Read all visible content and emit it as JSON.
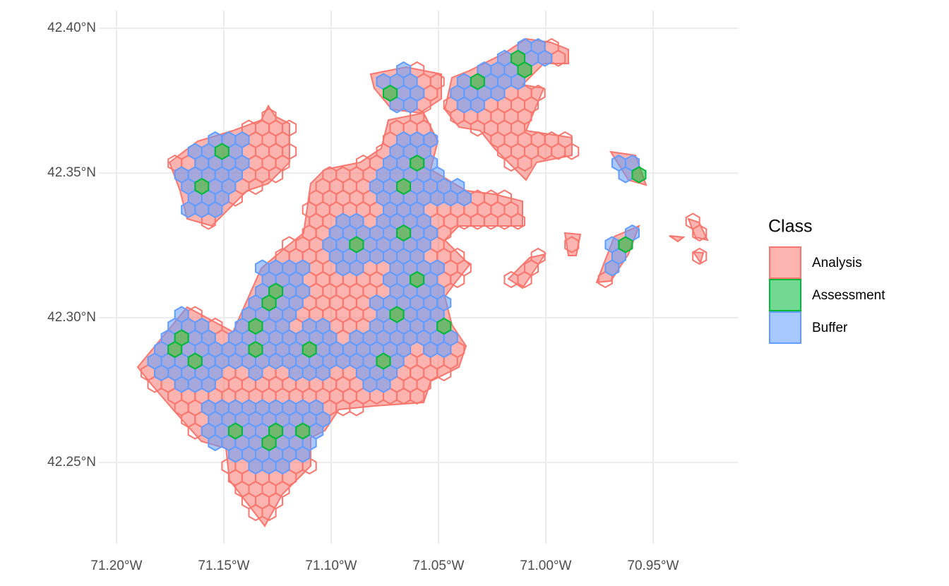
{
  "chart_data": {
    "type": "map",
    "legend_title": "Class",
    "series": [
      {
        "name": "Analysis",
        "color": "#f8766d"
      },
      {
        "name": "Assessment",
        "color": "#00ba38"
      },
      {
        "name": "Buffer",
        "color": "#619cff"
      }
    ],
    "xlim": [
      -71.2082,
      -70.9105
    ],
    "ylim": [
      42.222,
      42.4061
    ],
    "xticks": [
      {
        "value": -71.2,
        "label": "71.20°W"
      },
      {
        "value": -71.15,
        "label": "71.15°W"
      },
      {
        "value": -71.1,
        "label": "71.10°W"
      },
      {
        "value": -71.05,
        "label": "71.05°W"
      },
      {
        "value": -71.0,
        "label": "71.00°W"
      },
      {
        "value": -70.95,
        "label": "70.95°W"
      }
    ],
    "yticks": [
      {
        "value": 42.25,
        "label": "42.25°N"
      },
      {
        "value": 42.3,
        "label": "42.30°N"
      },
      {
        "value": 42.35,
        "label": "42.35°N"
      },
      {
        "value": 42.4,
        "label": "42.40°N"
      }
    ],
    "grid": true
  }
}
